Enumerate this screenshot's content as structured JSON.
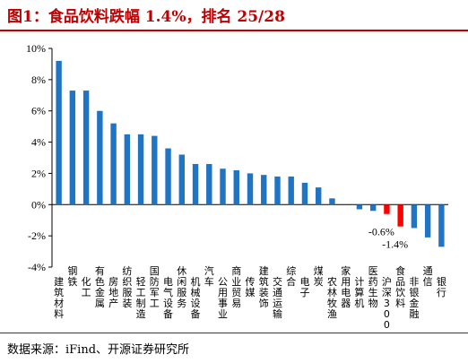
{
  "title": "图1：食品饮料跌幅 1.4%，排名 25/28",
  "source": "数据来源：iFind、开源证券研究所",
  "colors": {
    "up": "#1f74c4",
    "highlight": "#ff0000",
    "title": "#c00000"
  },
  "chart_data": {
    "type": "bar",
    "ylim": [
      -4,
      10
    ],
    "ytick_step": 2,
    "ytick_suffix": "%",
    "grid": false,
    "categories": [
      "建筑材料",
      "钢铁",
      "化工",
      "有色金属",
      "房地产",
      "纺织服装",
      "轻工制造",
      "国防军工",
      "电气设备",
      "休闲服务",
      "机械设备",
      "汽车",
      "公用事业",
      "商业贸易",
      "传媒",
      "建筑装饰",
      "交通运输",
      "综合",
      "电子",
      "煤炭",
      "农林牧渔",
      "家用电器",
      "计算机",
      "医药生物",
      "沪深300",
      "食品饮料",
      "非银金融",
      "通信",
      "银行"
    ],
    "values": [
      9.2,
      7.3,
      7.3,
      6.0,
      5.2,
      4.5,
      4.5,
      4.4,
      3.6,
      3.2,
      2.6,
      2.6,
      2.3,
      2.2,
      2.0,
      1.9,
      1.8,
      1.8,
      1.4,
      1.1,
      0.4,
      0.0,
      -0.3,
      -0.4,
      -0.6,
      -1.4,
      -1.5,
      -2.1,
      -2.7
    ],
    "highlight": [
      "沪深300",
      "食品饮料"
    ],
    "data_labels": [
      {
        "category": "沪深300",
        "text": "-0.6%"
      },
      {
        "category": "食品饮料",
        "text": "-1.4%"
      }
    ]
  }
}
